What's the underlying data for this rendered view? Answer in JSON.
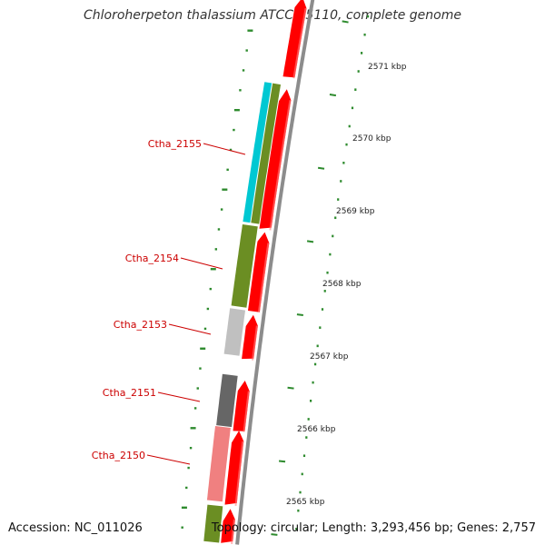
{
  "title": "Chloroherpeton thalassium ATCC 35110, complete genome",
  "footer": {
    "accession": "Accession: NC_011026",
    "topology": "Topology: circular; Length: 3,293,456 bp; Genes: 2,757"
  },
  "colors": {
    "cds_red": "#ff0000",
    "backbone": "#8c8c8c",
    "tick_green": "#2e8b2e",
    "label_red": "#cc0000",
    "olive": "#6b8e23",
    "cyan": "#00c8d2",
    "light_gray": "#c0c0c0",
    "dark_gray": "#666666",
    "pink": "#f08080"
  },
  "map": {
    "kbp_labels": [
      "2571 kbp",
      "2570 kbp",
      "2569 kbp",
      "2568 kbp",
      "2567 kbp",
      "2566 kbp",
      "2565 kbp"
    ],
    "gene_labels": [
      "Ctha_2155",
      "Ctha_2154",
      "Ctha_2153",
      "Ctha_2151",
      "Ctha_2150"
    ]
  }
}
